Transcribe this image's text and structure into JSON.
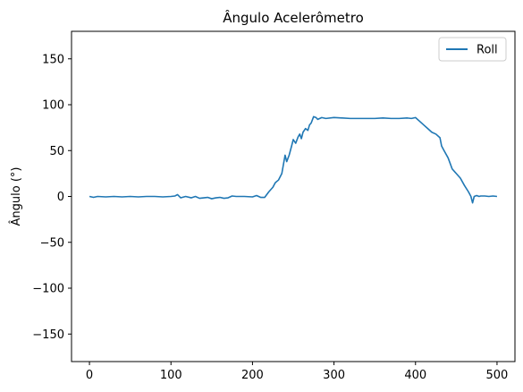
{
  "chart_data": {
    "type": "line",
    "title": "Ângulo Acelerômetro",
    "xlabel": "",
    "ylabel": "Ângulo (°)",
    "xlim": [
      -22,
      522
    ],
    "ylim": [
      -180,
      180
    ],
    "xticks": [
      0,
      100,
      200,
      300,
      400,
      500
    ],
    "yticks": [
      -150,
      -100,
      -50,
      0,
      50,
      100,
      150
    ],
    "grid": false,
    "legend": {
      "placement": "top-right"
    },
    "series": [
      {
        "name": "Roll",
        "color": "#1f77b4",
        "x": [
          0,
          5,
          10,
          20,
          30,
          40,
          50,
          60,
          70,
          80,
          90,
          100,
          105,
          108,
          112,
          118,
          125,
          130,
          135,
          140,
          145,
          150,
          155,
          160,
          165,
          170,
          175,
          180,
          190,
          200,
          205,
          210,
          215,
          220,
          225,
          228,
          232,
          236,
          240,
          242,
          245,
          248,
          250,
          253,
          256,
          258,
          260,
          262,
          265,
          268,
          270,
          272,
          275,
          278,
          280,
          285,
          290,
          300,
          310,
          320,
          330,
          340,
          350,
          360,
          370,
          380,
          390,
          395,
          400,
          405,
          410,
          415,
          420,
          425,
          430,
          432,
          435,
          440,
          445,
          450,
          455,
          460,
          465,
          468,
          470,
          472,
          475,
          478,
          480,
          485,
          490,
          495,
          500
        ],
        "y": [
          0,
          -1,
          0,
          -0.5,
          0,
          -0.5,
          0,
          -0.5,
          0,
          0,
          -0.5,
          0,
          0.5,
          2,
          -1.5,
          0,
          -1.5,
          0,
          -2,
          -1.5,
          -1,
          -2.5,
          -1.5,
          -1,
          -2,
          -1.5,
          0.5,
          0,
          0,
          -0.5,
          1,
          -1,
          -1,
          5,
          10,
          15,
          18,
          25,
          45,
          38,
          45,
          55,
          62,
          58,
          65,
          68,
          63,
          70,
          74,
          72,
          78,
          80,
          87,
          86,
          84,
          86,
          85,
          86,
          85.5,
          85,
          85,
          85,
          85,
          85.5,
          85,
          85,
          85.5,
          85,
          86,
          82,
          78,
          74,
          70,
          68,
          64,
          55,
          50,
          42,
          30,
          25,
          20,
          12,
          5,
          0,
          -7,
          0,
          1,
          0,
          0.5,
          0.5,
          0,
          0.5,
          0
        ]
      }
    ]
  }
}
